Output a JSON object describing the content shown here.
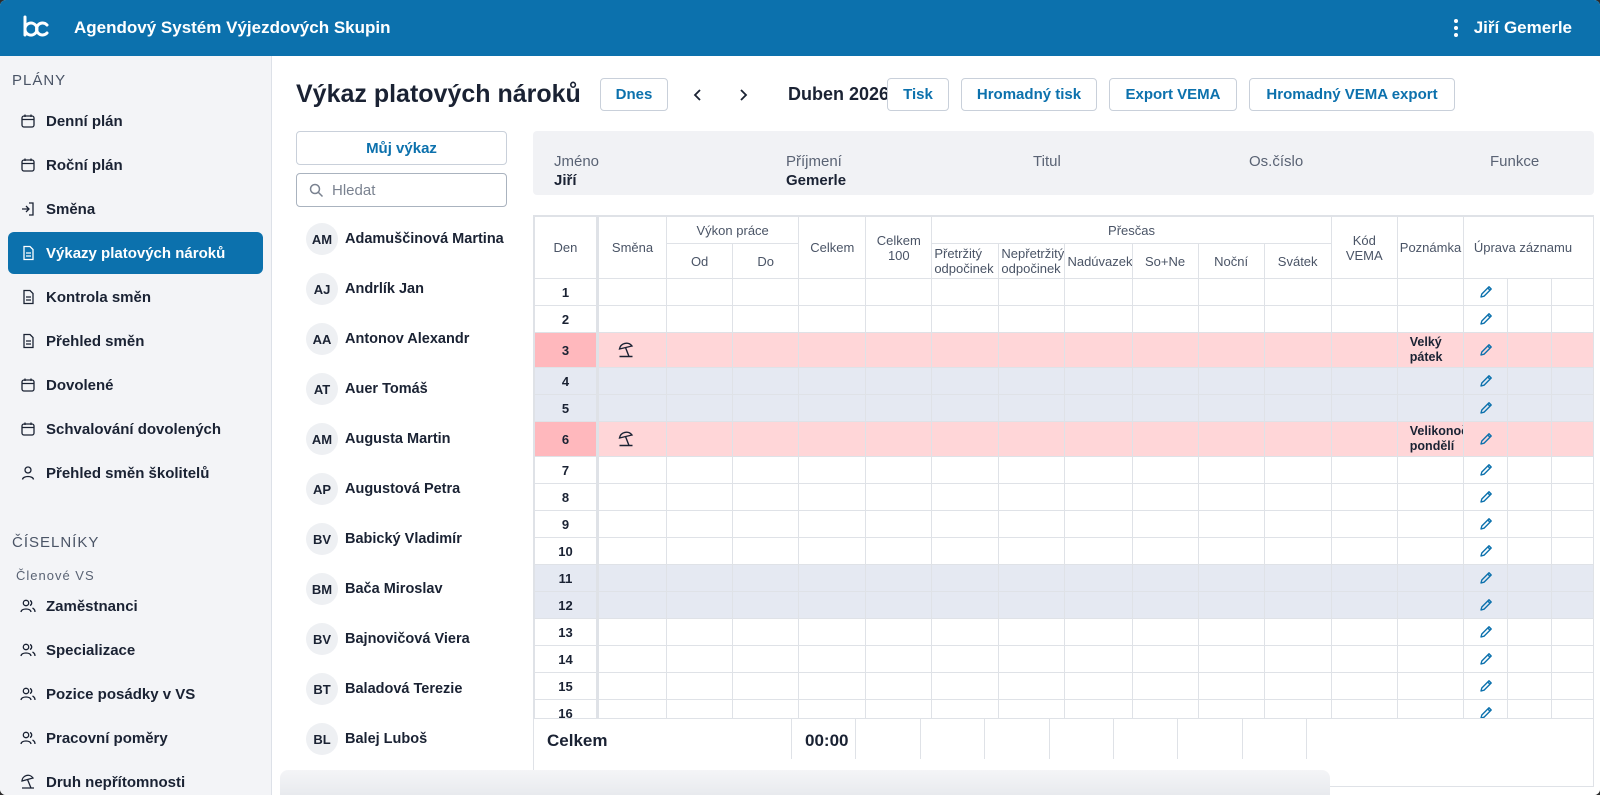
{
  "app": {
    "title": "Agendový Systém Výjezdových Skupin",
    "user": "Jiří Gemerle"
  },
  "sidebar": {
    "plans_title": "PLÁNY",
    "plans": [
      {
        "label": "Denní plán",
        "icon": "calendar-icon"
      },
      {
        "label": "Roční plán",
        "icon": "calendar-icon"
      },
      {
        "label": "Směna",
        "icon": "login-icon"
      },
      {
        "label": "Výkazy platových nároků",
        "icon": "document-icon",
        "active": true
      },
      {
        "label": "Kontrola směn",
        "icon": "document-icon"
      },
      {
        "label": "Přehled směn",
        "icon": "document-icon"
      },
      {
        "label": "Dovolené",
        "icon": "calendar-icon"
      },
      {
        "label": "Schvalování dovolených",
        "icon": "calendar-icon"
      },
      {
        "label": "Přehled směn školitelů",
        "icon": "user-icon"
      }
    ],
    "codebooks_title": "ČÍSELNÍKY",
    "members_title": "Členové VS",
    "codebooks": [
      {
        "label": "Zaměstnanci",
        "icon": "users-icon"
      },
      {
        "label": "Specializace",
        "icon": "users-icon"
      },
      {
        "label": "Pozice posádky v VS",
        "icon": "users-icon"
      },
      {
        "label": "Pracovní poměry",
        "icon": "users-icon"
      },
      {
        "label": "Druh nepřítomnosti",
        "icon": "beach-icon"
      }
    ]
  },
  "header": {
    "title": "Výkaz platových nároků",
    "today": "Dnes",
    "month": "Duben 2026",
    "print": "Tisk",
    "bulk_print": "Hromadný tisk",
    "export_vema": "Export VEMA",
    "bulk_vema": "Hromadný VEMA export"
  },
  "employees": {
    "my_report": "Můj výkaz",
    "search_placeholder": "Hledat",
    "items": [
      {
        "initials": "AM",
        "name": "Adamuščinová Martina"
      },
      {
        "initials": "AJ",
        "name": "Andrlík Jan"
      },
      {
        "initials": "AA",
        "name": "Antonov Alexandr"
      },
      {
        "initials": "AT",
        "name": "Auer Tomáš"
      },
      {
        "initials": "AM",
        "name": "Augusta Martin"
      },
      {
        "initials": "AP",
        "name": "Augustová Petra"
      },
      {
        "initials": "BV",
        "name": "Babický Vladimír"
      },
      {
        "initials": "BM",
        "name": "Bača Miroslav"
      },
      {
        "initials": "BV",
        "name": "Bajnovičová Viera"
      },
      {
        "initials": "BT",
        "name": "Baladová Terezie"
      },
      {
        "initials": "BL",
        "name": "Balej Luboš"
      }
    ]
  },
  "info": {
    "name_label": "Jméno",
    "name": "Jiří",
    "surname_label": "Příjmení",
    "surname": "Gemerle",
    "title_label": "Titul",
    "id_label": "Os.číslo",
    "function_label": "Funkce"
  },
  "table": {
    "headers": {
      "den": "Den",
      "smena": "Směna",
      "vykon": "Výkon práce",
      "od": "Od",
      "do": "Do",
      "celkem": "Celkem",
      "celkem100": "Celkem 100",
      "prescas": "Přesčas",
      "pretrzity": "Přetržitý odpočinek",
      "nepretrzity": "Nepřetržitý odpočinek",
      "naduvazek": "Nadúvazek",
      "sone": "So+Ne",
      "nocni": "Noční",
      "svatek": "Svátek",
      "kod": "Kód VEMA",
      "poznamka": "Poznámka",
      "uprava": "Úprava záznamu"
    },
    "rows": [
      {
        "day": "1",
        "type": "normal"
      },
      {
        "day": "2",
        "type": "normal"
      },
      {
        "day": "3",
        "type": "holiday",
        "note": "Velký pátek"
      },
      {
        "day": "4",
        "type": "weekend"
      },
      {
        "day": "5",
        "type": "weekend"
      },
      {
        "day": "6",
        "type": "holiday",
        "note": "Velikonoční pondělí"
      },
      {
        "day": "7",
        "type": "normal"
      },
      {
        "day": "8",
        "type": "normal"
      },
      {
        "day": "9",
        "type": "normal"
      },
      {
        "day": "10",
        "type": "normal"
      },
      {
        "day": "11",
        "type": "weekend"
      },
      {
        "day": "12",
        "type": "weekend"
      },
      {
        "day": "13",
        "type": "normal"
      },
      {
        "day": "14",
        "type": "normal"
      },
      {
        "day": "15",
        "type": "normal"
      },
      {
        "day": "16",
        "type": "normal"
      }
    ],
    "total_label": "Celkem",
    "total_value": "00:00"
  },
  "colors": {
    "primary": "#0c71ad",
    "holiday": "#ffd6d8",
    "weekend": "#e5e9f2"
  }
}
